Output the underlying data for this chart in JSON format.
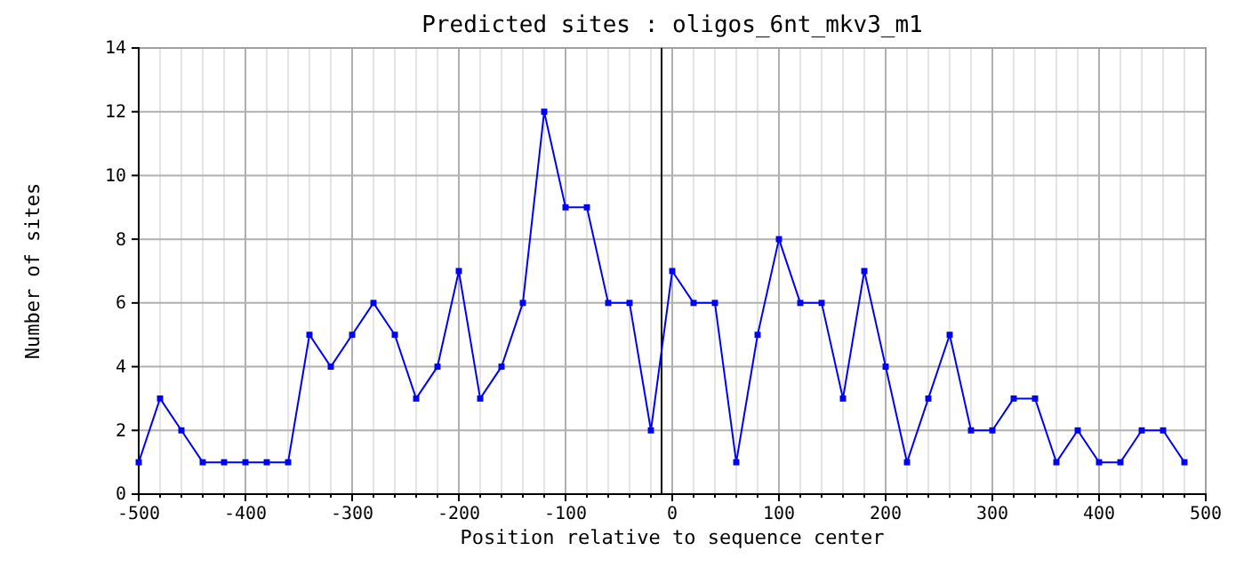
{
  "chart_data": {
    "type": "line",
    "title": "Predicted sites : oligos_6nt_mkv3_m1",
    "xlabel": "Position relative to sequence center",
    "ylabel": "Number of sites",
    "x": [
      -500,
      -480,
      -460,
      -440,
      -420,
      -400,
      -380,
      -360,
      -340,
      -320,
      -300,
      -280,
      -260,
      -240,
      -220,
      -200,
      -180,
      -160,
      -140,
      -120,
      -100,
      -80,
      -60,
      -40,
      -20,
      0,
      20,
      40,
      60,
      80,
      100,
      120,
      140,
      160,
      180,
      200,
      220,
      240,
      260,
      280,
      300,
      320,
      340,
      360,
      380,
      400,
      420,
      440,
      460,
      480
    ],
    "series": [
      {
        "color": "#0000ff",
        "values": [
          1,
          3,
          2,
          1,
          1,
          1,
          1,
          1,
          5,
          4,
          5,
          6,
          5,
          3,
          4,
          7,
          3,
          4,
          6,
          12,
          9,
          9,
          6,
          6,
          2,
          7,
          6,
          6,
          1,
          5,
          8,
          6,
          6,
          3,
          7,
          4,
          1,
          3,
          5,
          2,
          2,
          3,
          3,
          1,
          2,
          1,
          1,
          2,
          2,
          1
        ]
      }
    ],
    "xlim": [
      -500,
      500
    ],
    "ylim": [
      0,
      14
    ],
    "xticks": [
      -500,
      {
        "value": -480,
        "label": null
      },
      {
        "value": -460,
        "label": null
      },
      {
        "value": -440,
        "label": null
      },
      {
        "value": -420,
        "label": null
      },
      -400,
      {
        "value": -380,
        "label": null
      },
      {
        "value": -360,
        "label": null
      },
      {
        "value": -340,
        "label": null
      },
      {
        "value": -320,
        "label": null
      },
      -300,
      {
        "value": -280,
        "label": null
      },
      {
        "value": -260,
        "label": null
      },
      {
        "value": -240,
        "label": null
      },
      {
        "value": -220,
        "label": null
      },
      -200,
      {
        "value": -180,
        "label": null
      },
      {
        "value": -160,
        "label": null
      },
      {
        "value": -140,
        "label": null
      },
      {
        "value": -120,
        "label": null
      },
      -100,
      {
        "value": -80,
        "label": null
      },
      {
        "value": -60,
        "label": null
      },
      {
        "value": -40,
        "label": null
      },
      {
        "value": -20,
        "label": null
      },
      0,
      {
        "value": 20,
        "label": null
      },
      {
        "value": 40,
        "label": null
      },
      {
        "value": 60,
        "label": null
      },
      {
        "value": 80,
        "label": null
      },
      100,
      {
        "value": 120,
        "label": null
      },
      {
        "value": 140,
        "label": null
      },
      {
        "value": 160,
        "label": null
      },
      {
        "value": 180,
        "label": null
      },
      200,
      {
        "value": 220,
        "label": null
      },
      {
        "value": 240,
        "label": null
      },
      {
        "value": 260,
        "label": null
      },
      {
        "value": 280,
        "label": null
      },
      300,
      {
        "value": 320,
        "label": null
      },
      {
        "value": 340,
        "label": null
      },
      {
        "value": 360,
        "label": null
      },
      {
        "value": 380,
        "label": null
      },
      400,
      {
        "value": 420,
        "label": null
      },
      {
        "value": 440,
        "label": null
      },
      {
        "value": 460,
        "label": null
      },
      {
        "value": 480,
        "label": null
      },
      500
    ],
    "yticks": [
      0,
      2,
      4,
      6,
      8,
      10,
      12,
      14
    ],
    "grid": true,
    "marker": "square",
    "line_style": "solid",
    "ref_lines": [
      {
        "axis": "x",
        "value": -10,
        "color": "#000000"
      }
    ]
  }
}
